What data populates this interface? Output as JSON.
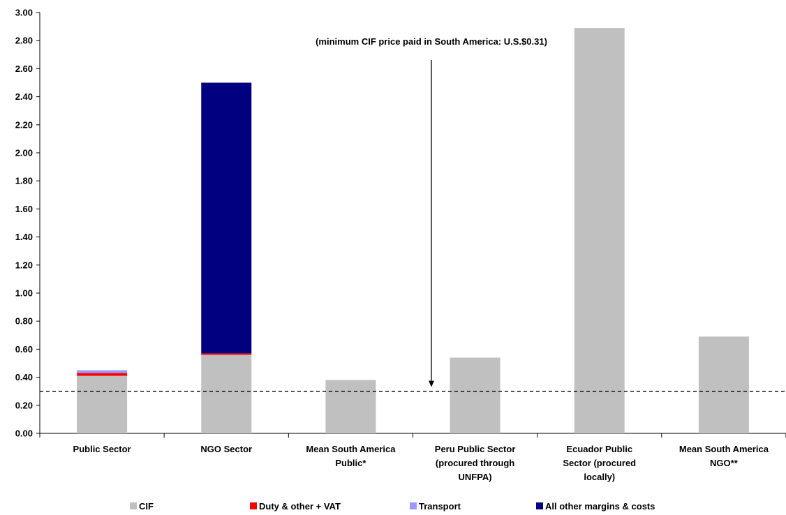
{
  "chart_data": {
    "type": "bar",
    "stacked": true,
    "categories": [
      [
        "Public Sector"
      ],
      [
        "NGO Sector"
      ],
      [
        "Mean South America",
        "Public*"
      ],
      [
        "Peru Public Sector",
        "(procured through",
        "UNFPA)"
      ],
      [
        "Ecuador Public",
        "Sector (procured",
        "locally)"
      ],
      [
        "Mean South America",
        "NGO**"
      ]
    ],
    "series": [
      {
        "name": "CIF",
        "color": "#c0c0c0",
        "values": [
          0.41,
          0.56,
          0.38,
          0.54,
          2.89,
          0.69
        ]
      },
      {
        "name": "Duty & other + VAT",
        "color": "#ff0000",
        "values": [
          0.02,
          0.01,
          0,
          0,
          0,
          0
        ]
      },
      {
        "name": "Transport",
        "color": "#9999ff",
        "values": [
          0.02,
          0,
          0,
          0,
          0,
          0
        ]
      },
      {
        "name": "All other margins & costs",
        "color": "#000080",
        "values": [
          0,
          1.93,
          0,
          0,
          0,
          0
        ]
      }
    ],
    "ylim": [
      0,
      3.0
    ],
    "yticks": [
      "0.00",
      "0.20",
      "0.40",
      "0.60",
      "0.80",
      "1.00",
      "1.20",
      "1.40",
      "1.60",
      "1.80",
      "2.00",
      "2.20",
      "2.40",
      "2.60",
      "2.80",
      "3.00"
    ],
    "reference_line": {
      "y": 0.3,
      "style": "dashed"
    },
    "annotation": {
      "text": "(minimum CIF price paid in South America: U.S.$0.31)",
      "arrow_to_y": 0.33
    },
    "legend_position": "bottom",
    "grid": false
  }
}
